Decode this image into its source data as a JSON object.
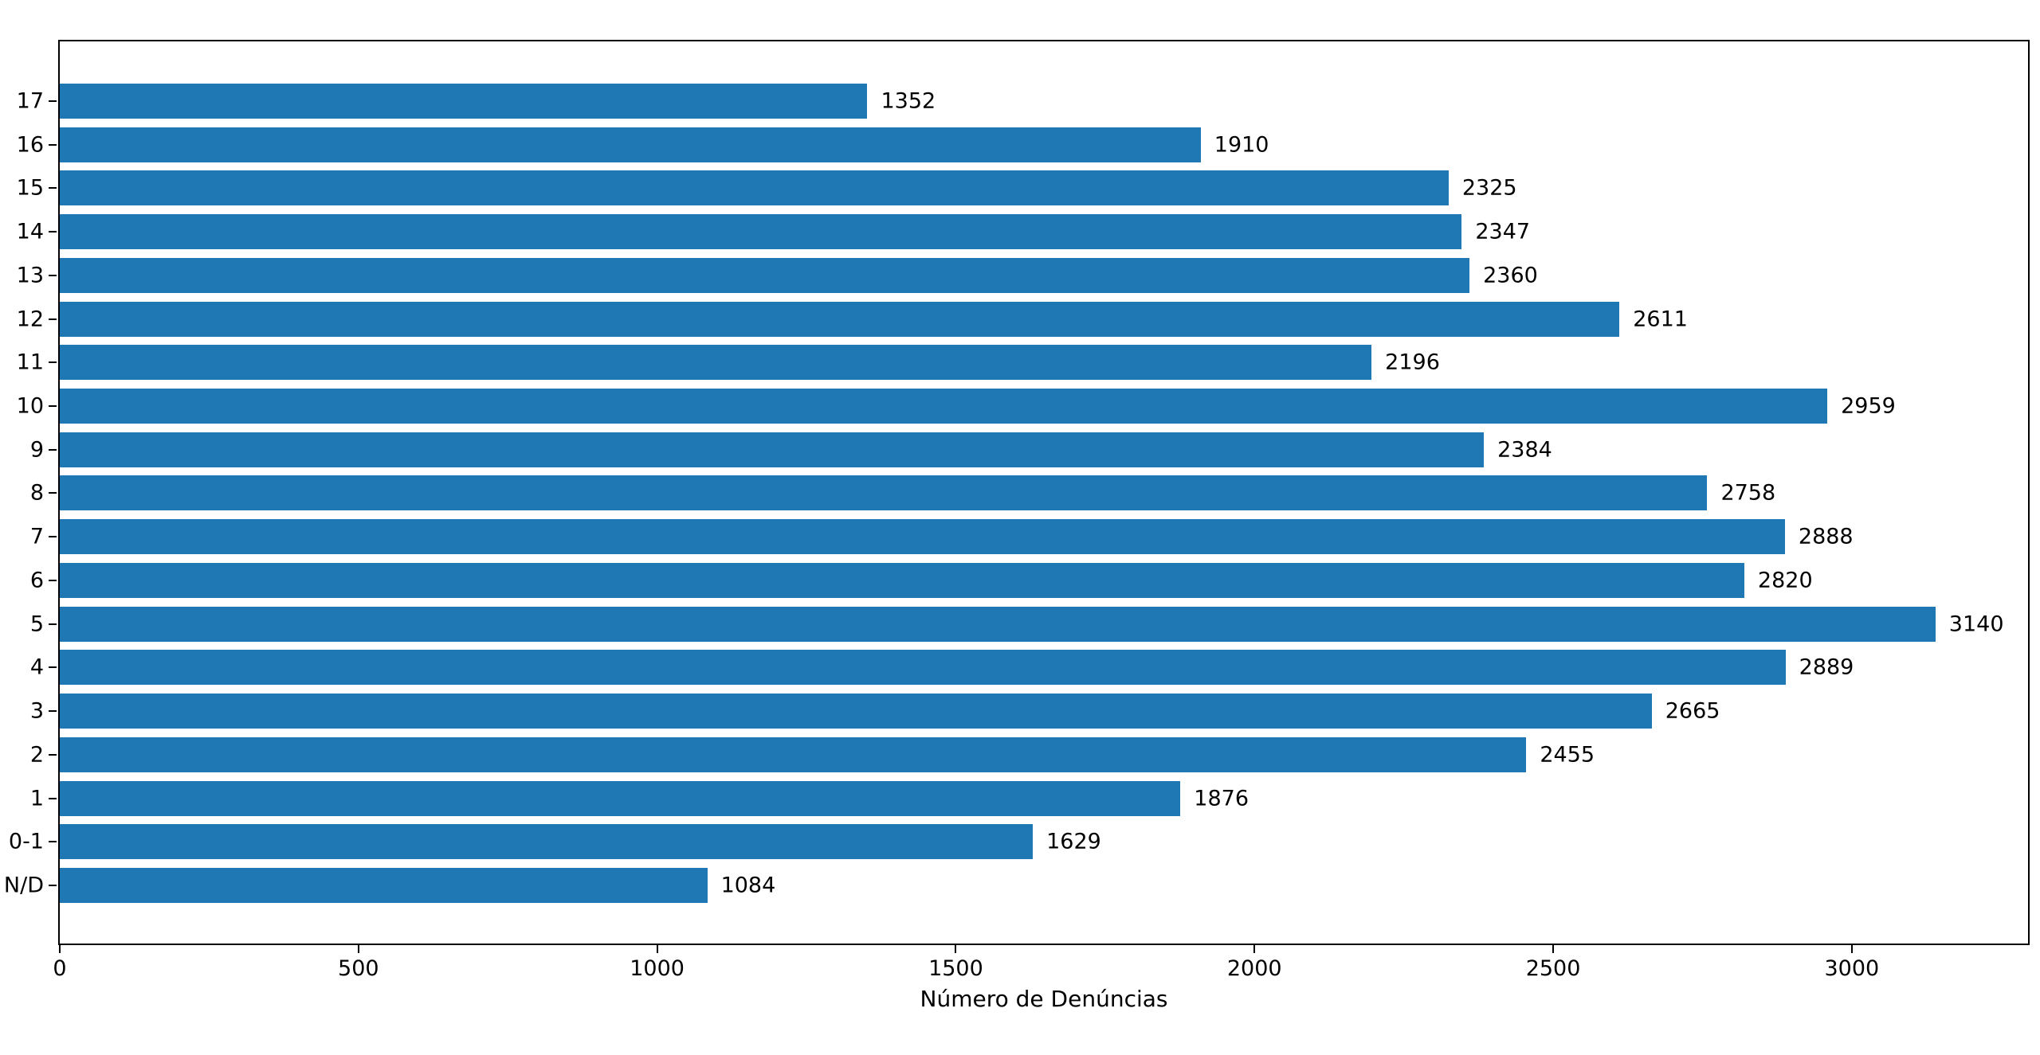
{
  "chart_data": {
    "type": "bar",
    "orientation": "horizontal",
    "title": "",
    "xlabel": "Número de Denúncias",
    "ylabel": "",
    "categories": [
      "17",
      "16",
      "15",
      "14",
      "13",
      "12",
      "11",
      "10",
      "9",
      "8",
      "7",
      "6",
      "5",
      "4",
      "3",
      "2",
      "1",
      "0-1",
      "N/D"
    ],
    "values": [
      1352,
      1910,
      2325,
      2347,
      2360,
      2611,
      2196,
      2959,
      2384,
      2758,
      2888,
      2820,
      3140,
      2889,
      2665,
      2455,
      1876,
      1629,
      1084
    ],
    "value_labels_shown": true,
    "xticks": [
      0,
      500,
      1000,
      1500,
      2000,
      2500,
      3000
    ],
    "xlim": [
      0,
      3295
    ],
    "bar_color": "#1f77b4",
    "text_color": "#000000",
    "grid": false,
    "legend": null
  }
}
